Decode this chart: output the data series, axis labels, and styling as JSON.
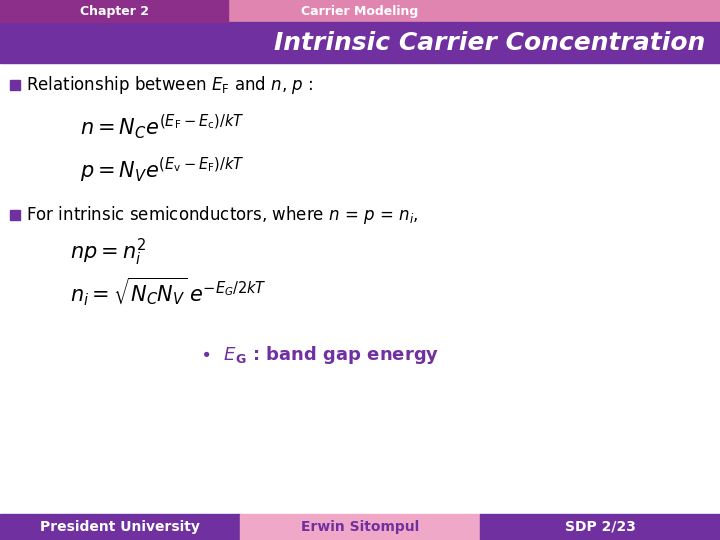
{
  "title_chapter": "Chapter 2",
  "title_module": "Carrier Modeling",
  "title_main": "Intrinsic Carrier Concentration",
  "header_purple_color": "#8b2f8b",
  "header_pink_color": "#e085b0",
  "title_bar_color": "#7030a0",
  "bullet_color": "#7030a0",
  "footer_left": "President University",
  "footer_mid": "Erwin Sitompul",
  "footer_right": "SDP 2/23",
  "footer_left_color": "#7030a0",
  "footer_mid_color": "#f0a8c8",
  "footer_right_color": "#7030a0",
  "footer_text_color_left": "#ffffff",
  "footer_text_color_mid": "#7030a0",
  "footer_text_color_right": "#ffffff",
  "bg_color": "#ffffff"
}
